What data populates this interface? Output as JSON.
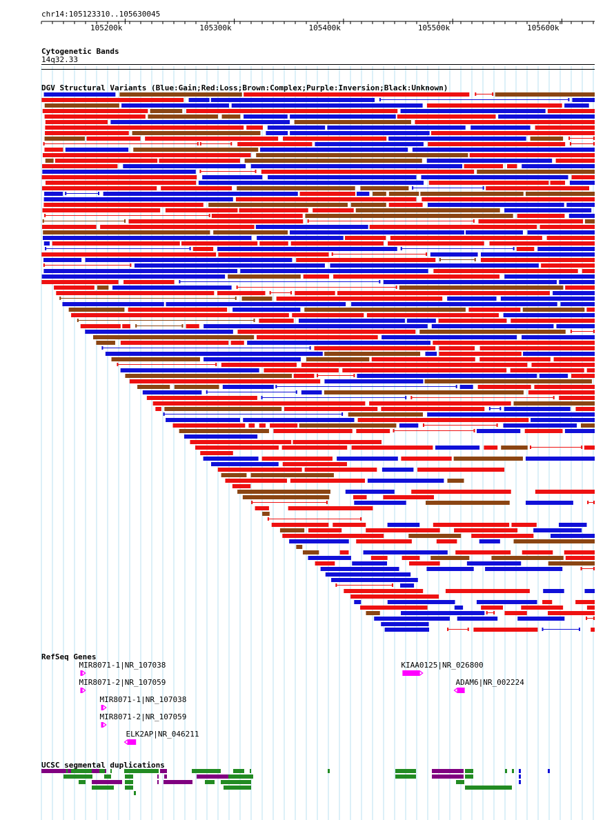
{
  "ruler": {
    "label": "chr14:105123310..105630045",
    "start": 105123310,
    "end": 105630045,
    "ticks": [
      {
        "pos": 105200000,
        "label": "105200k"
      },
      {
        "pos": 105300000,
        "label": "105300k"
      },
      {
        "pos": 105400000,
        "label": "105400k"
      },
      {
        "pos": 105500000,
        "label": "105500k"
      },
      {
        "pos": 105600000,
        "label": "105600k"
      }
    ]
  },
  "tracks": {
    "cytoband": {
      "title": "Cytogenetic Bands",
      "band": "14q32.33"
    },
    "dgv": {
      "title": "DGV Structural Variants (Blue:Gain;Red:Loss;Brown:Complex;Purple:Inversion;Black:Unknown)"
    },
    "refseq": {
      "title": "RefSeq Genes",
      "genes": [
        {
          "label": "MIR8071-1|NR_107038",
          "start": 105159000,
          "end": 105161000,
          "strand": "+"
        },
        {
          "label": "MIR8071-2|NR_107059",
          "start": 105159000,
          "end": 105161000,
          "strand": "+"
        },
        {
          "label": "MIR8071-1|NR_107038",
          "start": 105178000,
          "end": 105180000,
          "strand": "+"
        },
        {
          "label": "MIR8071-2|NR_107059",
          "start": 105178000,
          "end": 105180000,
          "strand": "+"
        },
        {
          "label": "ELK2AP|NR_046211",
          "start": 105202000,
          "end": 105210000,
          "strand": "-"
        },
        {
          "label": "KIAA0125|NR_026800",
          "start": 105454000,
          "end": 105470000,
          "strand": "+"
        },
        {
          "label": "ADAM6|NR_002224",
          "start": 105504000,
          "end": 105511000,
          "strand": "-"
        }
      ]
    },
    "segdups": {
      "title": "UCSC segmental duplications"
    }
  },
  "colors": {
    "gain": "#1010d8",
    "loss": "#ee1111",
    "complex": "#8b4513",
    "inversion": "#6a1a8a",
    "unknown": "#000000",
    "gene": "#ff00ff",
    "grid": "#b8e0f0",
    "segdup_green": "#228b22",
    "segdup_purple": "#800080"
  }
}
